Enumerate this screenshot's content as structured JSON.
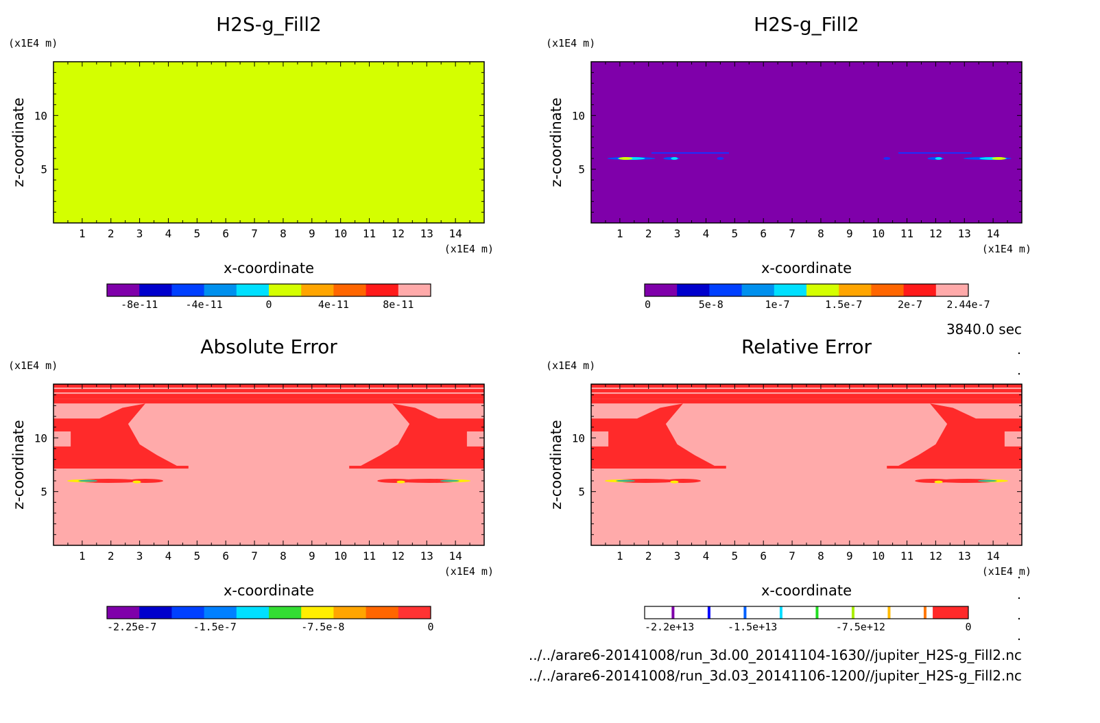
{
  "time_label": "3840.0 sec",
  "footer_lines": [
    "../../arare6-20141008/run_3d.00_20141104-1630//jupiter_H2S-g_Fill2.nc",
    "../../arare6-20141008/run_3d.03_20141106-1200//jupiter_H2S-g_Fill2.nc"
  ],
  "chart_data": [
    {
      "type": "heatmap",
      "title": "H2S-g_Fill2",
      "xlabel": "x-coordinate",
      "ylabel": "z-coordinate",
      "x_unit": "(x1E4 m)",
      "y_unit": "(x1E4 m)",
      "xlim": [
        0,
        15
      ],
      "ylim": [
        0,
        15
      ],
      "xticks": [
        "1",
        "2",
        "3",
        "4",
        "5",
        "6",
        "7",
        "8",
        "9",
        "10",
        "11",
        "12",
        "13",
        "14"
      ],
      "yticks": [
        "5",
        "10"
      ],
      "field": "uniform",
      "fill_color": "#d4ff00",
      "colorbar": {
        "colors": [
          "#7f00aa",
          "#0000cc",
          "#0040ff",
          "#0090ee",
          "#00e0ff",
          "#d4ff00",
          "#ffa500",
          "#ff6600",
          "#ff1a1a",
          "#ffaaaa"
        ],
        "tick_labels": [
          "-8e-11",
          "-4e-11",
          "0",
          "4e-11",
          "8e-11"
        ],
        "tick_fracs": [
          0.1,
          0.3,
          0.5,
          0.7,
          0.9
        ]
      }
    },
    {
      "type": "heatmap",
      "title": "H2S-g_Fill2",
      "xlabel": "x-coordinate",
      "ylabel": "z-coordinate",
      "x_unit": "(x1E4 m)",
      "y_unit": "(x1E4 m)",
      "xlim": [
        0,
        15
      ],
      "ylim": [
        0,
        15
      ],
      "xticks": [
        "1",
        "2",
        "3",
        "4",
        "5",
        "6",
        "7",
        "8",
        "9",
        "10",
        "11",
        "12",
        "13",
        "14"
      ],
      "yticks": [
        "5",
        "10"
      ],
      "field": "background_with_streaks",
      "fill_color": "#7f00aa",
      "colorbar": {
        "colors": [
          "#7f00aa",
          "#0000cc",
          "#0040ff",
          "#0090ee",
          "#00e0ff",
          "#d4ff00",
          "#ffa500",
          "#ff6600",
          "#ff1a1a",
          "#ffaaaa"
        ],
        "tick_labels": [
          "0",
          "5e-8",
          "1e-7",
          "1.5e-7",
          "2e-7",
          "2.44e-7"
        ],
        "tick_fracs": [
          0.0,
          0.205,
          0.41,
          0.615,
          0.82,
          1.0
        ]
      }
    },
    {
      "type": "heatmap",
      "title": "Absolute Error",
      "xlabel": "x-coordinate",
      "ylabel": "z-coordinate",
      "x_unit": "(x1E4 m)",
      "y_unit": "(x1E4 m)",
      "xlim": [
        0,
        15
      ],
      "ylim": [
        0,
        15
      ],
      "xticks": [
        "1",
        "2",
        "3",
        "4",
        "5",
        "6",
        "7",
        "8",
        "9",
        "10",
        "11",
        "12",
        "13",
        "14"
      ],
      "yticks": [
        "5",
        "10"
      ],
      "field": "error_pattern",
      "fill_color": "#ffaaaa",
      "colorbar": {
        "colors": [
          "#7f00aa",
          "#0000cc",
          "#0040ff",
          "#0080ff",
          "#00e0ff",
          "#33dd33",
          "#ffee00",
          "#ffa500",
          "#ff6600",
          "#ff3333"
        ],
        "tick_labels": [
          "-2.25e-7",
          "-1.5e-7",
          "-7.5e-8",
          "0"
        ],
        "tick_fracs": [
          0.0,
          0.333,
          0.667,
          1.0
        ]
      }
    },
    {
      "type": "heatmap",
      "title": "Relative Error",
      "xlabel": "x-coordinate",
      "ylabel": "z-coordinate",
      "x_unit": "(x1E4 m)",
      "y_unit": "(x1E4 m)",
      "xlim": [
        0,
        15
      ],
      "ylim": [
        0,
        15
      ],
      "xticks": [
        "1",
        "2",
        "3",
        "4",
        "5",
        "6",
        "7",
        "8",
        "9",
        "10",
        "11",
        "12",
        "13",
        "14"
      ],
      "yticks": [
        "5",
        "10"
      ],
      "field": "error_pattern",
      "fill_color": "#ffaaaa",
      "colorbar": {
        "style": "thin_lines",
        "line_colors": [
          "#7f00aa",
          "#0000ff",
          "#0060ff",
          "#00ddff",
          "#22dd22",
          "#aaee00",
          "#ffbb00",
          "#ff7700"
        ],
        "end_color": "#ff2a2a",
        "tick_labels": [
          "-2.2e+13",
          "-1.5e+13",
          "-7.5e+12",
          "0"
        ],
        "tick_fracs": [
          0.0,
          0.333,
          0.667,
          1.0
        ]
      }
    }
  ]
}
